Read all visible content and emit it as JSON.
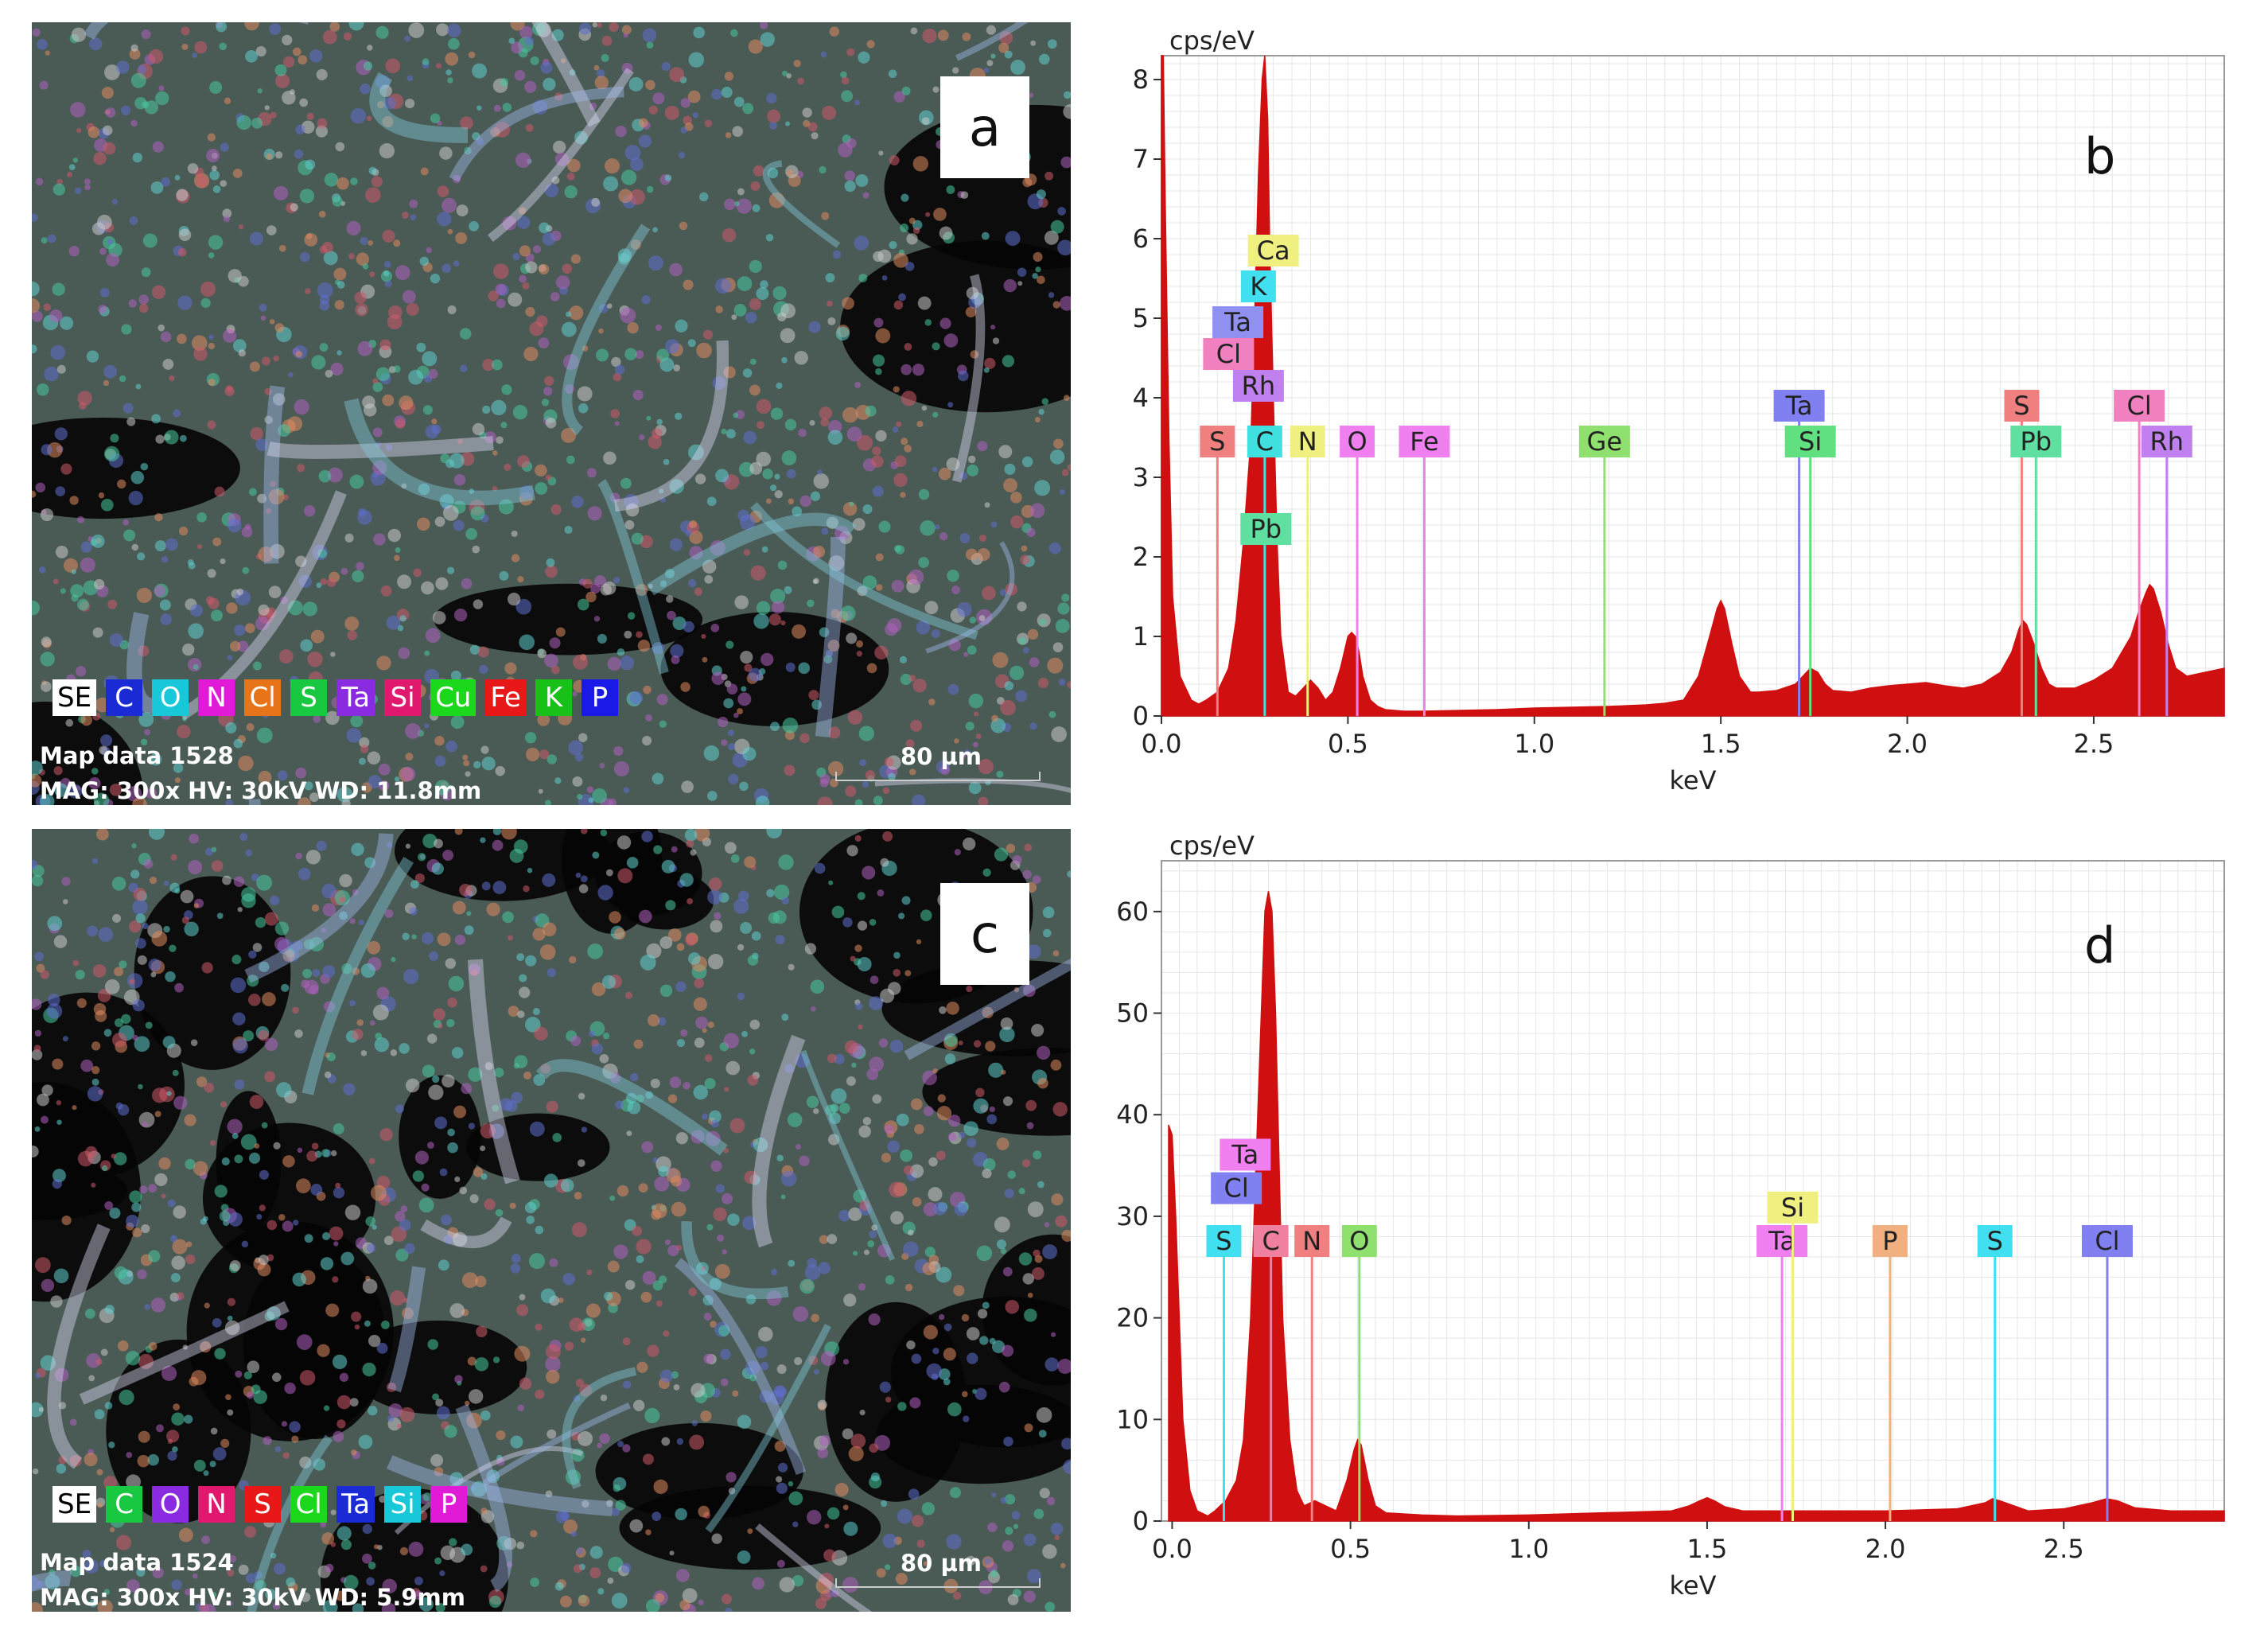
{
  "panels": {
    "a": {
      "letter": "a",
      "legend": [
        {
          "text": "SE",
          "bg": "#ffffff",
          "fg": "#000000"
        },
        {
          "text": "C",
          "bg": "#1a2bd6",
          "fg": "#ffffff"
        },
        {
          "text": "O",
          "bg": "#19c8d8",
          "fg": "#ffffff"
        },
        {
          "text": "N",
          "bg": "#e01ad6",
          "fg": "#ffffff"
        },
        {
          "text": "Cl",
          "bg": "#e8741a",
          "fg": "#ffffff"
        },
        {
          "text": "S",
          "bg": "#18c840",
          "fg": "#ffffff"
        },
        {
          "text": "Ta",
          "bg": "#8a2be2",
          "fg": "#ffffff"
        },
        {
          "text": "Si",
          "bg": "#e0186e",
          "fg": "#ffffff"
        },
        {
          "text": "Cu",
          "bg": "#1cd81c",
          "fg": "#ffffff"
        },
        {
          "text": "Fe",
          "bg": "#e81818",
          "fg": "#ffffff"
        },
        {
          "text": "K",
          "bg": "#18c018",
          "fg": "#ffffff"
        },
        {
          "text": "P",
          "bg": "#1a1ae8",
          "fg": "#ffffff"
        }
      ],
      "info_line1": "Map data 1528",
      "info_line2": "MAG: 300x HV: 30kV WD: 11.8mm",
      "scale_label": "80 µm"
    },
    "c": {
      "letter": "c",
      "legend": [
        {
          "text": "SE",
          "bg": "#ffffff",
          "fg": "#000000"
        },
        {
          "text": "C",
          "bg": "#18c840",
          "fg": "#ffffff"
        },
        {
          "text": "O",
          "bg": "#8a2be2",
          "fg": "#ffffff"
        },
        {
          "text": "N",
          "bg": "#e0186e",
          "fg": "#ffffff"
        },
        {
          "text": "S",
          "bg": "#e81818",
          "fg": "#ffffff"
        },
        {
          "text": "Cl",
          "bg": "#1cd81c",
          "fg": "#ffffff"
        },
        {
          "text": "Ta",
          "bg": "#1a2bd6",
          "fg": "#ffffff"
        },
        {
          "text": "Si",
          "bg": "#19c8d8",
          "fg": "#ffffff"
        },
        {
          "text": "P",
          "bg": "#e01ad6",
          "fg": "#ffffff"
        }
      ],
      "info_line1": "Map data 1524",
      "info_line2": "MAG: 300x HV: 30kV WD: 5.9mm",
      "scale_label": "80 µm"
    }
  },
  "chart_data": [
    {
      "id": "b",
      "type": "area",
      "panel_letter": "b",
      "ylabel": "cps/eV",
      "xlabel": "keV",
      "xlim": [
        0.0,
        2.85
      ],
      "ylim": [
        0,
        8.3
      ],
      "xticks": [
        0.0,
        0.5,
        1.0,
        1.5,
        2.0,
        2.5
      ],
      "xtick_labels": [
        "0.0",
        "0.5",
        "1.0",
        "1.5",
        "2.0",
        "2.5"
      ],
      "yticks": [
        0,
        1,
        2,
        3,
        4,
        5,
        6,
        7,
        8
      ],
      "ytick_labels": [
        "0",
        "1",
        "2",
        "3",
        "4",
        "5",
        "6",
        "7",
        "8"
      ],
      "grid": true,
      "fill_color": "#d01010",
      "spectrum": {
        "x": [
          0.0,
          0.005,
          0.01,
          0.02,
          0.03,
          0.05,
          0.08,
          0.1,
          0.12,
          0.15,
          0.18,
          0.2,
          0.22,
          0.24,
          0.25,
          0.26,
          0.27,
          0.277,
          0.285,
          0.29,
          0.3,
          0.31,
          0.32,
          0.34,
          0.36,
          0.38,
          0.4,
          0.42,
          0.44,
          0.46,
          0.48,
          0.5,
          0.51,
          0.52,
          0.53,
          0.54,
          0.56,
          0.58,
          0.6,
          0.65,
          0.7,
          0.8,
          0.9,
          1.0,
          1.1,
          1.2,
          1.3,
          1.35,
          1.4,
          1.44,
          1.47,
          1.49,
          1.5,
          1.51,
          1.53,
          1.55,
          1.58,
          1.6,
          1.65,
          1.7,
          1.72,
          1.74,
          1.76,
          1.78,
          1.8,
          1.85,
          1.9,
          1.95,
          2.0,
          2.05,
          2.1,
          2.15,
          2.2,
          2.25,
          2.28,
          2.3,
          2.31,
          2.32,
          2.34,
          2.36,
          2.38,
          2.4,
          2.45,
          2.5,
          2.55,
          2.6,
          2.62,
          2.64,
          2.65,
          2.66,
          2.68,
          2.7,
          2.72,
          2.75,
          2.8,
          2.85
        ],
        "y": [
          8.3,
          8.3,
          6.5,
          3.5,
          1.5,
          0.5,
          0.2,
          0.15,
          0.2,
          0.3,
          0.6,
          1.2,
          2.2,
          3.5,
          5.0,
          6.8,
          8.0,
          8.3,
          7.5,
          6.0,
          4.0,
          2.2,
          1.0,
          0.3,
          0.25,
          0.35,
          0.45,
          0.35,
          0.2,
          0.3,
          0.6,
          1.0,
          1.05,
          1.0,
          0.8,
          0.5,
          0.2,
          0.12,
          0.08,
          0.06,
          0.06,
          0.07,
          0.08,
          0.1,
          0.11,
          0.12,
          0.14,
          0.16,
          0.2,
          0.5,
          1.0,
          1.35,
          1.45,
          1.35,
          0.9,
          0.5,
          0.3,
          0.3,
          0.32,
          0.4,
          0.5,
          0.6,
          0.55,
          0.4,
          0.32,
          0.3,
          0.35,
          0.38,
          0.4,
          0.42,
          0.38,
          0.35,
          0.4,
          0.55,
          0.8,
          1.1,
          1.2,
          1.15,
          0.9,
          0.6,
          0.4,
          0.35,
          0.35,
          0.45,
          0.6,
          1.0,
          1.3,
          1.55,
          1.65,
          1.6,
          1.3,
          0.9,
          0.6,
          0.5,
          0.55,
          0.6
        ]
      },
      "element_lines": [
        {
          "label": "S",
          "x": 0.15,
          "top": 3.25,
          "color": "#f08080",
          "label_row": 1
        },
        {
          "label": "C",
          "x": 0.277,
          "top": 3.25,
          "color": "#40e0e0",
          "label_row": 1
        },
        {
          "label": "N",
          "x": 0.392,
          "top": 3.25,
          "color": "#f0f080",
          "label_row": 1
        },
        {
          "label": "O",
          "x": 0.525,
          "top": 3.25,
          "color": "#f080f0",
          "label_row": 1
        },
        {
          "label": "Fe",
          "x": 0.705,
          "top": 3.25,
          "color": "#f080f0",
          "label_row": 1
        },
        {
          "label": "Ge",
          "x": 1.188,
          "top": 3.25,
          "color": "#90e070",
          "label_row": 1
        },
        {
          "label": "Ta",
          "x": 1.71,
          "top": 3.7,
          "color": "#8080f0",
          "label_row": 0
        },
        {
          "label": "Si",
          "x": 1.74,
          "top": 3.25,
          "color": "#60e080",
          "label_row": 1
        },
        {
          "label": "S",
          "x": 2.307,
          "top": 3.7,
          "color": "#f08080",
          "label_row": 0
        },
        {
          "label": "Pb",
          "x": 2.345,
          "top": 3.25,
          "color": "#60e0a0",
          "label_row": 1
        },
        {
          "label": "Cl",
          "x": 2.622,
          "top": 3.7,
          "color": "#f080c0",
          "label_row": 0
        },
        {
          "label": "Rh",
          "x": 2.696,
          "top": 3.25,
          "color": "#c080f0",
          "label_row": 1
        }
      ],
      "stack_labels": [
        {
          "label": "Ca",
          "x": 0.3,
          "y": 5.65,
          "color": "#f0f080"
        },
        {
          "label": "K",
          "x": 0.26,
          "y": 5.2,
          "color": "#40e0f0"
        },
        {
          "label": "Ta",
          "x": 0.205,
          "y": 4.75,
          "color": "#9090f0"
        },
        {
          "label": "Cl",
          "x": 0.18,
          "y": 4.35,
          "color": "#f080c0"
        },
        {
          "label": "Rh",
          "x": 0.26,
          "y": 3.95,
          "color": "#c080f0"
        },
        {
          "label": "Pb",
          "x": 0.28,
          "y": 2.15,
          "color": "#60e0a0"
        }
      ]
    },
    {
      "id": "d",
      "type": "area",
      "panel_letter": "d",
      "ylabel": "cps/eV",
      "xlabel": "keV",
      "xlim": [
        -0.03,
        2.95
      ],
      "ylim": [
        0,
        65
      ],
      "xticks": [
        0.0,
        0.5,
        1.0,
        1.5,
        2.0,
        2.5
      ],
      "xtick_labels": [
        "0.0",
        "0.5",
        "1.0",
        "1.5",
        "2.0",
        "2.5"
      ],
      "yticks": [
        0,
        10,
        20,
        30,
        40,
        50,
        60
      ],
      "ytick_labels": [
        "0",
        "10",
        "20",
        "30",
        "40",
        "50",
        "60"
      ],
      "grid": true,
      "fill_color": "#d01010",
      "spectrum": {
        "x": [
          -0.01,
          0.0,
          0.01,
          0.02,
          0.03,
          0.05,
          0.07,
          0.1,
          0.12,
          0.15,
          0.18,
          0.2,
          0.22,
          0.24,
          0.26,
          0.27,
          0.28,
          0.29,
          0.3,
          0.31,
          0.33,
          0.35,
          0.37,
          0.4,
          0.43,
          0.46,
          0.49,
          0.51,
          0.52,
          0.53,
          0.55,
          0.57,
          0.6,
          0.7,
          0.8,
          1.0,
          1.2,
          1.4,
          1.45,
          1.48,
          1.5,
          1.52,
          1.55,
          1.6,
          1.7,
          1.8,
          2.0,
          2.2,
          2.28,
          2.3,
          2.32,
          2.36,
          2.4,
          2.5,
          2.58,
          2.62,
          2.65,
          2.7,
          2.8,
          2.9,
          2.95
        ],
        "y": [
          39,
          38,
          30,
          20,
          10,
          3,
          1,
          0.5,
          1,
          2,
          4,
          8,
          20,
          40,
          60,
          62,
          60,
          50,
          35,
          20,
          8,
          3,
          1.5,
          2,
          1.5,
          1,
          4,
          7,
          8,
          7.5,
          4,
          1.5,
          0.8,
          0.6,
          0.5,
          0.6,
          0.8,
          1.0,
          1.5,
          2.0,
          2.3,
          2.0,
          1.4,
          1.0,
          1.0,
          1.0,
          1.0,
          1.2,
          1.8,
          2.2,
          2.0,
          1.5,
          1.0,
          1.2,
          1.8,
          2.2,
          2.0,
          1.3,
          1.0,
          1.0,
          1.0
        ]
      },
      "element_lines": [
        {
          "label": "S",
          "x": 0.145,
          "top": 26,
          "color": "#40e0f0",
          "label_row": 1
        },
        {
          "label": "C",
          "x": 0.277,
          "top": 26,
          "color": "#f080a0",
          "label_row": 1
        },
        {
          "label": "N",
          "x": 0.392,
          "top": 26,
          "color": "#f08080",
          "label_row": 1
        },
        {
          "label": "O",
          "x": 0.525,
          "top": 26,
          "color": "#90e070",
          "label_row": 1
        },
        {
          "label": "Ta",
          "x": 1.71,
          "top": 26,
          "color": "#f080f0",
          "label_row": 1
        },
        {
          "label": "Si",
          "x": 1.74,
          "top": 29.3,
          "color": "#f0f080",
          "label_row": 0
        },
        {
          "label": "P",
          "x": 2.013,
          "top": 26,
          "color": "#f0b080",
          "label_row": 1
        },
        {
          "label": "S",
          "x": 2.307,
          "top": 26,
          "color": "#40e0f0",
          "label_row": 1
        },
        {
          "label": "Cl",
          "x": 2.622,
          "top": 26,
          "color": "#8080f0",
          "label_row": 1
        }
      ],
      "stack_labels": [
        {
          "label": "Ta",
          "x": 0.205,
          "y": 34.5,
          "color": "#f080f0"
        },
        {
          "label": "Cl",
          "x": 0.18,
          "y": 31.2,
          "color": "#8080f0"
        }
      ]
    }
  ]
}
